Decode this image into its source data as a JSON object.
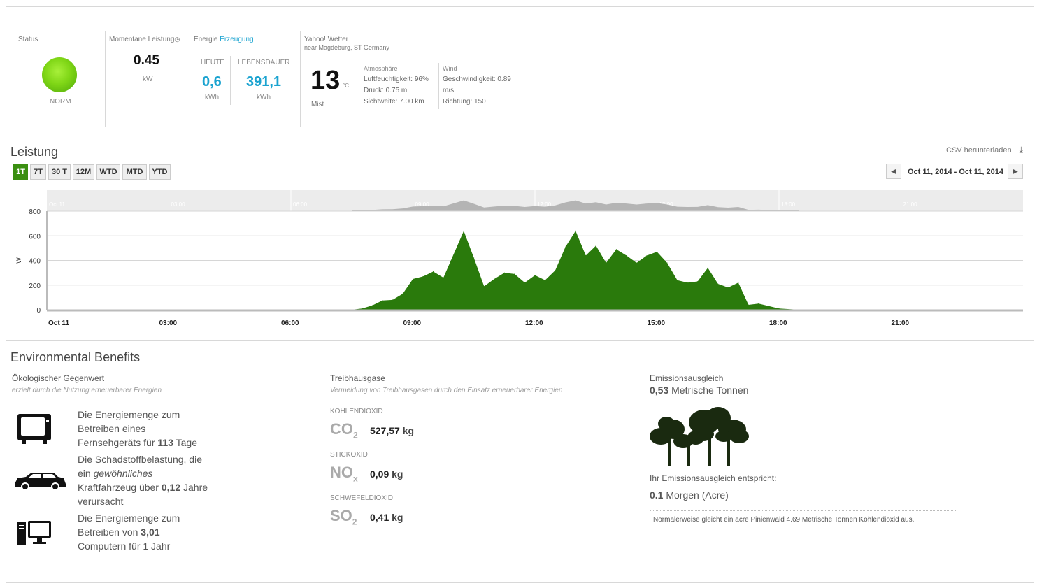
{
  "status": {
    "label": "Status",
    "value": "NORM",
    "color": "#7fd616"
  },
  "power": {
    "label": "Momentane Leistung",
    "value": "0.45",
    "unit": "kW"
  },
  "energy": {
    "label_prefix": "Energie",
    "label_link": "Erzeugung",
    "today_label": "HEUTE",
    "today_value": "0,6",
    "today_unit": "kWh",
    "lifetime_label": "LEBENSDAUER",
    "lifetime_value": "391,1",
    "lifetime_unit": "kWh"
  },
  "weather": {
    "title": "Yahoo! Wetter",
    "location": "near Magdeburg, ST Germany",
    "temp": "13",
    "temp_unit": "°C",
    "condition": "Mist",
    "atmo_title": "Atmosphäre",
    "humidity": "Luftfeuchtigkeit: 96%",
    "pressure": "Druck: 0.75 m",
    "visibility": "Sichtweite: 7.00 km",
    "wind_title": "Wind",
    "speed": "Geschwindigkeit: 0.89",
    "speed_unit": "m/s",
    "direction": "Richtung: 150"
  },
  "leistung": {
    "title": "Leistung",
    "csv": "CSV herunterladen",
    "ranges": [
      "1T",
      "7T",
      "30 T",
      "12M",
      "WTD",
      "MTD",
      "YTD"
    ],
    "active_range": "1T",
    "date_range": "Oct 11, 2014 - Oct 11, 2014"
  },
  "chart_data": {
    "type": "area",
    "title": "",
    "xlabel": "",
    "ylabel": "W",
    "ylim": [
      0,
      800
    ],
    "yticks": [
      "0",
      "200",
      "400",
      "600",
      "800"
    ],
    "xticks": [
      "Oct 11",
      "03:00",
      "06:00",
      "09:00",
      "12:00",
      "15:00",
      "18:00",
      "21:00"
    ],
    "nav_ticks": [
      "Oct 11",
      "03:00",
      "06:00",
      "09:00",
      "12:00",
      "15:00",
      "18:00",
      "21:00"
    ],
    "color": "#2a7a0c",
    "series": [
      {
        "x": [
          "07:30",
          "07:45",
          "08:00",
          "08:15",
          "08:30",
          "08:45",
          "09:00",
          "09:15",
          "09:30",
          "09:45",
          "10:00",
          "10:15",
          "10:30",
          "10:45",
          "11:00",
          "11:15",
          "11:30",
          "11:45",
          "12:00",
          "12:15",
          "12:30",
          "12:45",
          "13:00",
          "13:15",
          "13:30",
          "13:45",
          "14:00",
          "14:15",
          "14:30",
          "14:45",
          "15:00",
          "15:15",
          "15:30",
          "15:45",
          "16:00",
          "16:15",
          "16:30",
          "16:45",
          "17:00",
          "17:15",
          "17:30",
          "17:45",
          "18:00",
          "18:15",
          "18:30"
        ],
        "values": [
          0,
          10,
          35,
          75,
          80,
          130,
          250,
          270,
          310,
          260,
          450,
          640,
          420,
          190,
          250,
          300,
          290,
          220,
          280,
          240,
          320,
          510,
          640,
          440,
          520,
          380,
          490,
          440,
          380,
          440,
          470,
          380,
          240,
          220,
          230,
          340,
          210,
          180,
          220,
          40,
          50,
          30,
          10,
          5,
          0
        ]
      }
    ]
  },
  "benefits": {
    "title": "Environmental Benefits",
    "eco": {
      "title": "Ökologischer Gegenwert",
      "subtitle": "erzielt durch die Nutzung erneuerbarer Energien",
      "tv": {
        "line1": "Die Energiemenge zum",
        "line2": "Betreiben eines",
        "line3_pre": "Fernsehgeräts für ",
        "line3_bold": "113",
        "line3_post": " Tage"
      },
      "car": {
        "line1": "Die Schadstoffbelastung, die",
        "line2_pre": "ein ",
        "line2_it": "gewöhnliches",
        "line3_pre": "Kraftfahrzeug über ",
        "line3_bold": "0,12",
        "line3_post": " Jahre",
        "line4": "verursacht"
      },
      "pc": {
        "line1": "Die Energiemenge zum",
        "line2_pre": "Betreiben von ",
        "line2_bold": "3,01",
        "line3": "Computern für 1 Jahr"
      }
    },
    "ghg": {
      "title": "Treibhausgase",
      "subtitle": "Vermeidung von Treibhausgasen durch den Einsatz erneuerbarer Energien",
      "co2": {
        "label": "KOHLENDIOXID",
        "main": "CO",
        "sub": "2",
        "value": "527,57",
        "unit": "kg"
      },
      "nox": {
        "label": "STICKOXID",
        "main": "NO",
        "sub": "x",
        "value": "0,09",
        "unit": "kg"
      },
      "so2": {
        "label": "SCHWEFELDIOXID",
        "main": "SO",
        "sub": "2",
        "value": "0,41",
        "unit": "kg"
      }
    },
    "offset": {
      "title": "Emissionsausgleich",
      "value": "0,53",
      "value_unit": " Metrische Tonnen",
      "equiv_label": "Ihr Emissionsausgleich entspricht:",
      "acres": "0.1",
      "acres_unit": " Morgen (Acre)",
      "note": "Normalerweise gleicht ein acre Pinienwald 4.69 Metrische Tonnen Kohlendioxid aus."
    }
  }
}
